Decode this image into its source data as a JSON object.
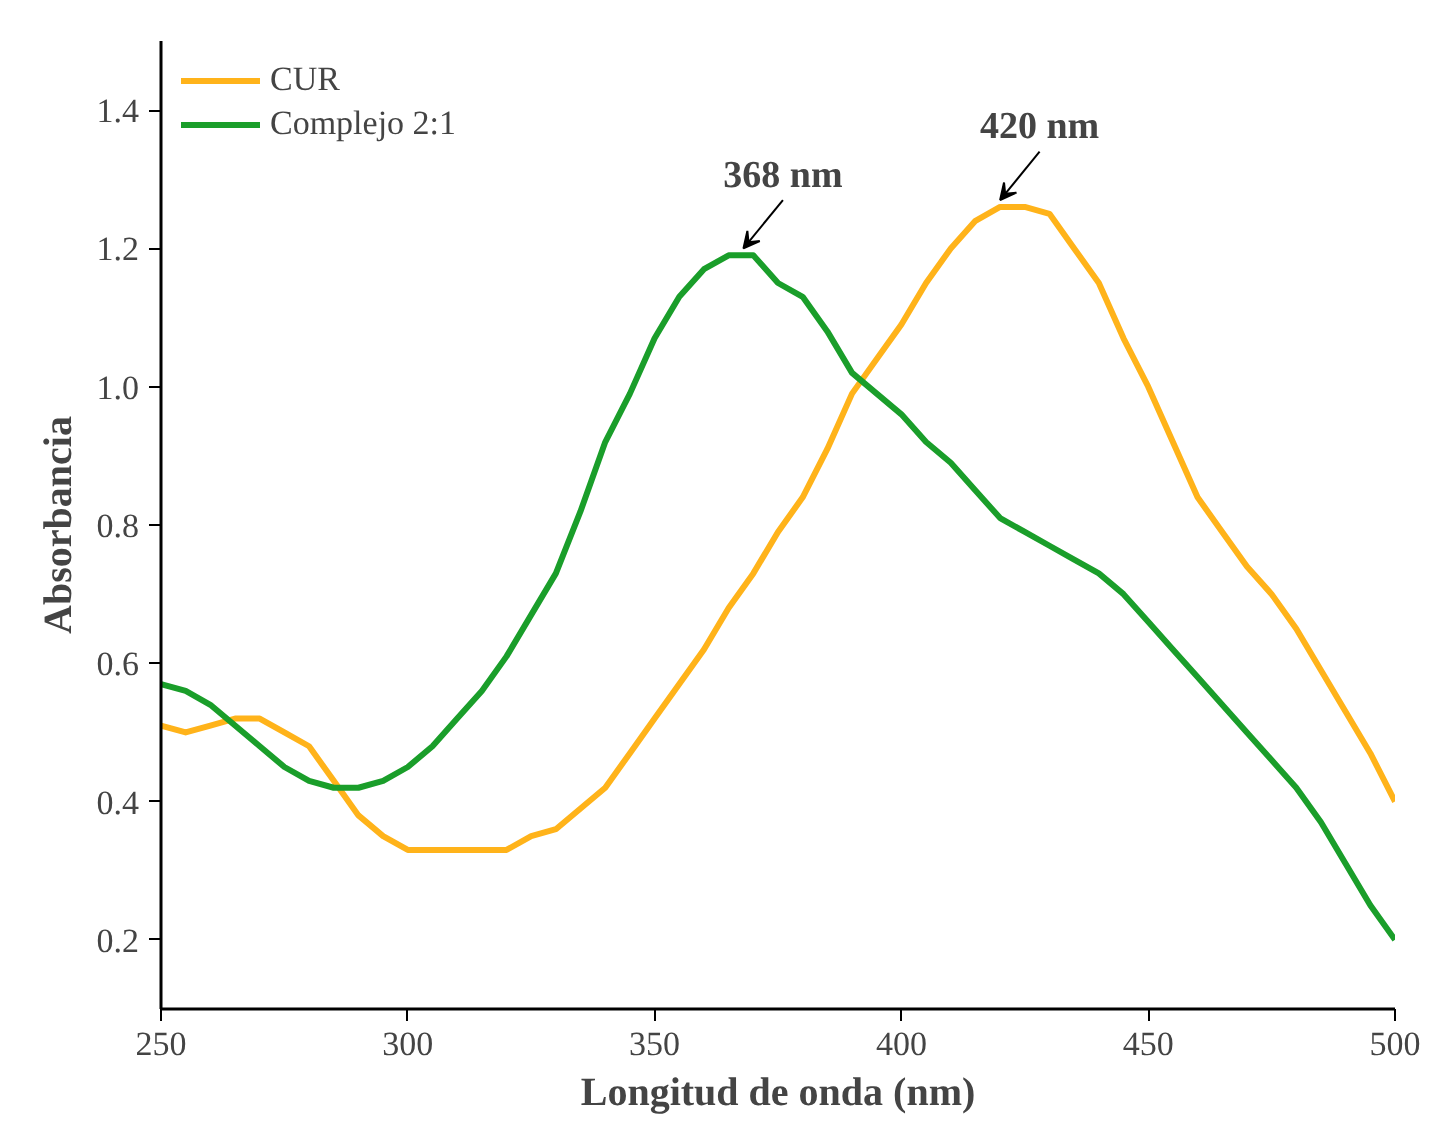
{
  "chart_data": {
    "type": "line",
    "xlabel": "Longitud de onda (nm)",
    "ylabel": "Absorbancia",
    "xlim": [
      250,
      500
    ],
    "ylim": [
      0.1,
      1.5
    ],
    "xticks": [
      250,
      300,
      350,
      400,
      450,
      500
    ],
    "yticks": [
      0.2,
      0.4,
      0.6,
      0.8,
      {
        "value": 1,
        "label": "1.0"
      },
      1.2,
      1.4
    ],
    "grid": false,
    "legend": "top left",
    "marker": "none",
    "line_style": "solid",
    "x": [
      250,
      255,
      260,
      265,
      270,
      275,
      280,
      285,
      290,
      295,
      300,
      305,
      310,
      315,
      320,
      325,
      330,
      335,
      340,
      345,
      350,
      355,
      360,
      365,
      370,
      375,
      380,
      385,
      390,
      395,
      400,
      405,
      410,
      415,
      420,
      425,
      430,
      435,
      440,
      445,
      450,
      455,
      460,
      465,
      470,
      475,
      480,
      485,
      490,
      495,
      500
    ],
    "series": [
      {
        "name": "CUR",
        "color": "#ffb31a",
        "values": [
          0.51,
          0.5,
          0.51,
          0.52,
          0.52,
          0.5,
          0.48,
          0.43,
          0.38,
          0.35,
          0.33,
          0.33,
          0.33,
          0.33,
          0.33,
          0.35,
          0.36,
          0.39,
          0.42,
          0.47,
          0.52,
          0.57,
          0.62,
          0.68,
          0.73,
          0.79,
          0.84,
          0.91,
          0.99,
          1.04,
          1.09,
          1.15,
          1.2,
          1.24,
          1.26,
          1.26,
          1.25,
          1.2,
          1.15,
          1.07,
          1.0,
          0.92,
          0.84,
          0.79,
          0.74,
          0.7,
          0.65,
          0.59,
          0.53,
          0.47,
          0.4
        ]
      },
      {
        "name": "Complejo 2:1",
        "color": "#1a9e2a",
        "values": [
          0.57,
          0.56,
          0.54,
          0.51,
          0.48,
          0.45,
          0.43,
          0.42,
          0.42,
          0.43,
          0.45,
          0.48,
          0.52,
          0.56,
          0.61,
          0.67,
          0.73,
          0.82,
          0.92,
          0.99,
          1.07,
          1.13,
          1.17,
          1.19,
          1.19,
          1.15,
          1.13,
          1.08,
          1.02,
          0.99,
          0.96,
          0.92,
          0.89,
          0.85,
          0.81,
          0.79,
          0.77,
          0.75,
          0.73,
          0.7,
          0.66,
          0.62,
          0.58,
          0.54,
          0.5,
          0.46,
          0.42,
          0.37,
          0.31,
          0.25,
          0.2
        ]
      }
    ],
    "annotations": [
      {
        "text": "368 nm",
        "x": 368,
        "y": 1.2
      },
      {
        "text": "420 nm",
        "x": 420,
        "y": 1.27
      }
    ]
  }
}
